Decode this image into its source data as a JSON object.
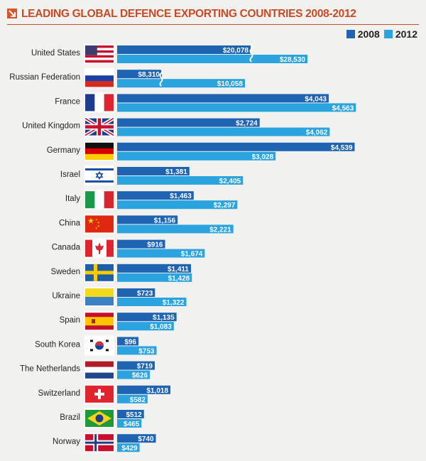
{
  "title": "LEADING GLOBAL DEFENCE EXPORTING COUNTRIES 2008-2012",
  "colors": {
    "accent": "#c84a24",
    "series_2008": "#1f63b3",
    "series_2012": "#2aa3df",
    "background": "#f1f1ef"
  },
  "chart_data": {
    "type": "bar",
    "orientation": "horizontal",
    "title": "LEADING GLOBAL DEFENCE EXPORTING COUNTRIES 2008-2012",
    "legend_placement": "top-right",
    "categories": [
      "United States",
      "Russian Federation",
      "France",
      "United Kingdom",
      "Germany",
      "Israel",
      "Italy",
      "China",
      "Canada",
      "Sweden",
      "Ukraine",
      "Spain",
      "South Korea",
      "The Netherlands",
      "Switzerland",
      "Brazil",
      "Norway"
    ],
    "flags": [
      "flag-us-icon",
      "flag-russia-icon",
      "flag-france-icon",
      "flag-uk-icon",
      "flag-germany-icon",
      "flag-israel-icon",
      "flag-italy-icon",
      "flag-china-icon",
      "flag-canada-icon",
      "flag-sweden-icon",
      "flag-ukraine-icon",
      "flag-spain-icon",
      "flag-south-korea-icon",
      "flag-netherlands-icon",
      "flag-switzerland-icon",
      "flag-brazil-icon",
      "flag-norway-icon"
    ],
    "series": [
      {
        "name": "2008",
        "values": [
          20078,
          8310,
          4043,
          2724,
          4539,
          1381,
          1463,
          1156,
          916,
          1411,
          723,
          1135,
          96,
          719,
          1018,
          512,
          740
        ],
        "labels": [
          "$20,078",
          "$8,310",
          "$4,043",
          "$2,724",
          "$4,539",
          "$1,381",
          "$1,463",
          "$1,156",
          "$916",
          "$1,411",
          "$723",
          "$1,135",
          "$96",
          "$719",
          "$1,018",
          "$512",
          "$740"
        ]
      },
      {
        "name": "2012",
        "values": [
          28530,
          10058,
          4563,
          4062,
          3028,
          2405,
          2297,
          2221,
          1674,
          1428,
          1322,
          1083,
          753,
          626,
          582,
          465,
          429
        ],
        "labels": [
          "$28,530",
          "$10,058",
          "$4,563",
          "$4,062",
          "$3,028",
          "$2,405",
          "$2,297",
          "$2,221",
          "$1,674",
          "$1,428",
          "$1,322",
          "$1,083",
          "$753",
          "$626",
          "$582",
          "$465",
          "$429"
        ]
      }
    ],
    "broken_axis_categories": [
      "United States",
      "Russian Federation"
    ]
  }
}
